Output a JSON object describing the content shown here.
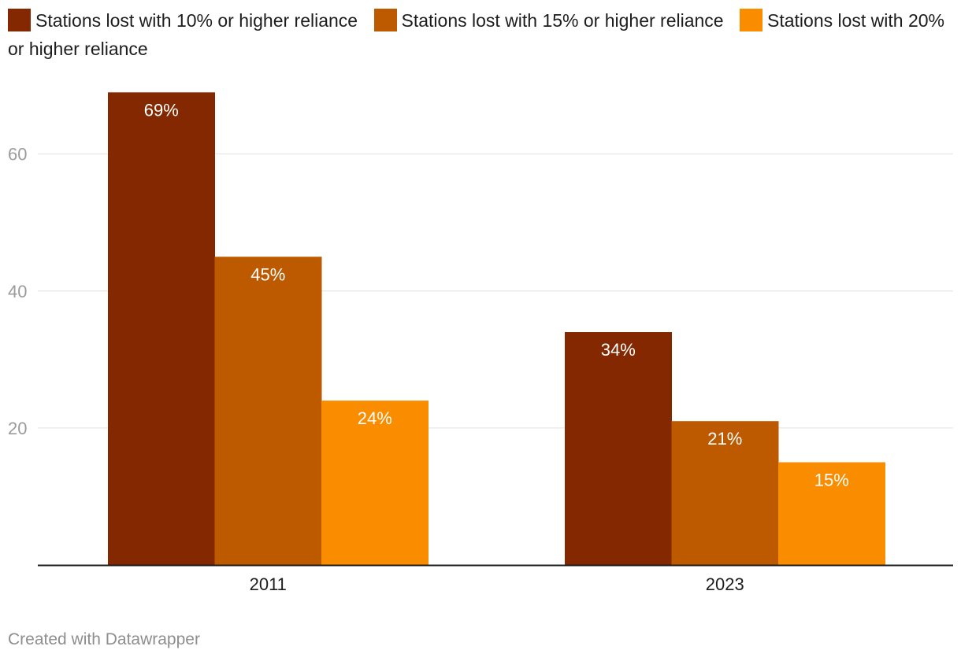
{
  "chart_data": {
    "type": "bar",
    "title": "",
    "xlabel": "",
    "ylabel": "",
    "categories": [
      "2011",
      "2023"
    ],
    "series": [
      {
        "name": "Stations lost with 10% or higher reliance",
        "values": [
          69,
          34
        ],
        "labels": [
          "69%",
          "34%"
        ],
        "color": "#832800"
      },
      {
        "name": "Stations lost with 15% or higher reliance",
        "values": [
          45,
          21
        ],
        "labels": [
          "45%",
          "21%"
        ],
        "color": "#bd5a00"
      },
      {
        "name": "Stations lost with 20% or higher reliance",
        "values": [
          24,
          15
        ],
        "labels": [
          "24%",
          "15%"
        ],
        "color": "#fa8c00"
      }
    ],
    "yticks": [
      20,
      40,
      60
    ],
    "ylim": [
      0,
      69
    ],
    "grid": true,
    "legend_position": "top"
  },
  "footer": {
    "credit": "Created with Datawrapper"
  }
}
